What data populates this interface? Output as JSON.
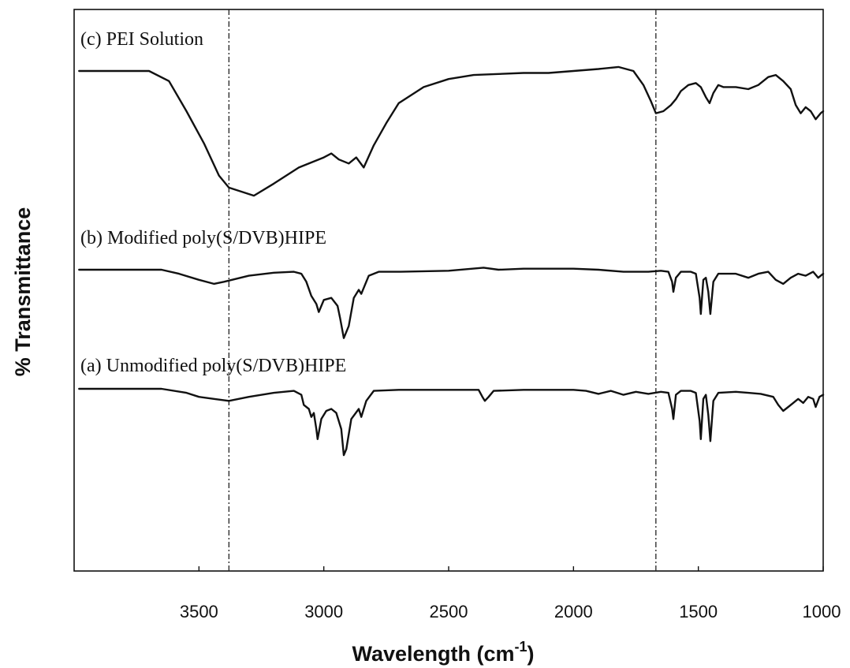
{
  "chart_data": {
    "type": "line",
    "title": "",
    "xlabel": "Wavelength (cm",
    "xlabel_superscript": "-1",
    "xlabel_close": ")",
    "ylabel": "% Transmittance",
    "xlim": [
      4000,
      1000
    ],
    "x_reversed": true,
    "y_ticks_shown": false,
    "x_ticks": [
      3500,
      3000,
      2500,
      2000,
      1500,
      1000
    ],
    "reference_lines_x": [
      3380,
      1670
    ],
    "grid": false,
    "legend": "none (series labelled directly above each trace)",
    "series": [
      {
        "name": "(c) PEI Solution",
        "points": [
          [
            3980,
            100
          ],
          [
            3700,
            100
          ],
          [
            3620,
            95
          ],
          [
            3550,
            80
          ],
          [
            3480,
            64
          ],
          [
            3420,
            48
          ],
          [
            3380,
            42
          ],
          [
            3330,
            40
          ],
          [
            3280,
            38
          ],
          [
            3200,
            44
          ],
          [
            3100,
            52
          ],
          [
            3000,
            57
          ],
          [
            2970,
            59
          ],
          [
            2940,
            56
          ],
          [
            2900,
            54
          ],
          [
            2870,
            57
          ],
          [
            2840,
            52
          ],
          [
            2800,
            63
          ],
          [
            2750,
            74
          ],
          [
            2700,
            84
          ],
          [
            2600,
            92
          ],
          [
            2500,
            96
          ],
          [
            2400,
            98
          ],
          [
            2300,
            98.5
          ],
          [
            2200,
            99
          ],
          [
            2100,
            99
          ],
          [
            2000,
            100
          ],
          [
            1900,
            101
          ],
          [
            1820,
            102
          ],
          [
            1760,
            100
          ],
          [
            1720,
            93
          ],
          [
            1690,
            85
          ],
          [
            1670,
            79
          ],
          [
            1640,
            80
          ],
          [
            1610,
            83
          ],
          [
            1590,
            86
          ],
          [
            1570,
            90
          ],
          [
            1540,
            93
          ],
          [
            1510,
            94
          ],
          [
            1490,
            92
          ],
          [
            1470,
            87
          ],
          [
            1455,
            84
          ],
          [
            1440,
            89
          ],
          [
            1420,
            93
          ],
          [
            1400,
            92
          ],
          [
            1350,
            92
          ],
          [
            1300,
            91
          ],
          [
            1260,
            93
          ],
          [
            1220,
            97
          ],
          [
            1190,
            98
          ],
          [
            1160,
            95
          ],
          [
            1130,
            91
          ],
          [
            1110,
            83
          ],
          [
            1090,
            79
          ],
          [
            1070,
            82
          ],
          [
            1050,
            80
          ],
          [
            1030,
            76
          ],
          [
            1010,
            79
          ],
          [
            1000,
            80
          ]
        ]
      },
      {
        "name": "(b) Modified poly(S/DVB)HIPE",
        "points": [
          [
            3980,
            100
          ],
          [
            3650,
            100
          ],
          [
            3580,
            98
          ],
          [
            3500,
            95
          ],
          [
            3440,
            93
          ],
          [
            3400,
            94
          ],
          [
            3300,
            97
          ],
          [
            3200,
            98.5
          ],
          [
            3120,
            99
          ],
          [
            3090,
            98
          ],
          [
            3070,
            94
          ],
          [
            3050,
            87
          ],
          [
            3030,
            83
          ],
          [
            3020,
            79
          ],
          [
            3000,
            85
          ],
          [
            2970,
            86
          ],
          [
            2945,
            82
          ],
          [
            2935,
            76
          ],
          [
            2920,
            66
          ],
          [
            2900,
            72
          ],
          [
            2880,
            86
          ],
          [
            2860,
            90
          ],
          [
            2850,
            88
          ],
          [
            2820,
            97
          ],
          [
            2780,
            99
          ],
          [
            2700,
            99
          ],
          [
            2500,
            99.5
          ],
          [
            2360,
            101
          ],
          [
            2300,
            100
          ],
          [
            2200,
            100.5
          ],
          [
            2000,
            100.5
          ],
          [
            1900,
            100
          ],
          [
            1800,
            99
          ],
          [
            1700,
            99
          ],
          [
            1650,
            99.5
          ],
          [
            1620,
            99
          ],
          [
            1605,
            94
          ],
          [
            1600,
            89
          ],
          [
            1590,
            96
          ],
          [
            1570,
            99
          ],
          [
            1530,
            99
          ],
          [
            1510,
            98
          ],
          [
            1495,
            86
          ],
          [
            1490,
            78
          ],
          [
            1480,
            95
          ],
          [
            1470,
            96
          ],
          [
            1460,
            89
          ],
          [
            1452,
            78
          ],
          [
            1440,
            94
          ],
          [
            1420,
            98
          ],
          [
            1350,
            98
          ],
          [
            1300,
            96
          ],
          [
            1260,
            98
          ],
          [
            1220,
            99
          ],
          [
            1190,
            95
          ],
          [
            1160,
            93
          ],
          [
            1130,
            96
          ],
          [
            1100,
            98
          ],
          [
            1070,
            97
          ],
          [
            1040,
            99
          ],
          [
            1020,
            96
          ],
          [
            1000,
            98
          ]
        ]
      },
      {
        "name": "(a) Unmodified poly(S/DVB)HIPE",
        "points": [
          [
            3980,
            100
          ],
          [
            3650,
            100
          ],
          [
            3550,
            98
          ],
          [
            3500,
            96
          ],
          [
            3440,
            95
          ],
          [
            3380,
            94
          ],
          [
            3300,
            96
          ],
          [
            3200,
            98
          ],
          [
            3120,
            99
          ],
          [
            3090,
            97
          ],
          [
            3080,
            92
          ],
          [
            3060,
            90
          ],
          [
            3050,
            86
          ],
          [
            3040,
            88
          ],
          [
            3030,
            80
          ],
          [
            3025,
            75
          ],
          [
            3010,
            85
          ],
          [
            2990,
            89
          ],
          [
            2970,
            90
          ],
          [
            2950,
            88
          ],
          [
            2930,
            80
          ],
          [
            2920,
            67
          ],
          [
            2910,
            70
          ],
          [
            2890,
            85
          ],
          [
            2860,
            90
          ],
          [
            2850,
            86
          ],
          [
            2830,
            94
          ],
          [
            2800,
            99
          ],
          [
            2700,
            99.5
          ],
          [
            2500,
            99.5
          ],
          [
            2380,
            99.5
          ],
          [
            2365,
            96
          ],
          [
            2355,
            94
          ],
          [
            2340,
            96
          ],
          [
            2320,
            99
          ],
          [
            2200,
            99.5
          ],
          [
            2000,
            99.5
          ],
          [
            1950,
            99
          ],
          [
            1900,
            97.5
          ],
          [
            1850,
            99
          ],
          [
            1800,
            97
          ],
          [
            1750,
            98.5
          ],
          [
            1700,
            97.5
          ],
          [
            1650,
            98.5
          ],
          [
            1620,
            98
          ],
          [
            1605,
            90
          ],
          [
            1600,
            85
          ],
          [
            1590,
            97
          ],
          [
            1570,
            99
          ],
          [
            1530,
            99
          ],
          [
            1510,
            98
          ],
          [
            1495,
            84
          ],
          [
            1490,
            75
          ],
          [
            1480,
            95
          ],
          [
            1470,
            97
          ],
          [
            1460,
            87
          ],
          [
            1452,
            74
          ],
          [
            1440,
            94
          ],
          [
            1420,
            98
          ],
          [
            1350,
            98.5
          ],
          [
            1300,
            98
          ],
          [
            1250,
            97.5
          ],
          [
            1200,
            96
          ],
          [
            1180,
            92
          ],
          [
            1160,
            89
          ],
          [
            1140,
            91
          ],
          [
            1120,
            93
          ],
          [
            1100,
            95
          ],
          [
            1080,
            93
          ],
          [
            1060,
            96
          ],
          [
            1040,
            95
          ],
          [
            1030,
            91
          ],
          [
            1015,
            96
          ],
          [
            1000,
            97
          ]
        ]
      }
    ]
  }
}
